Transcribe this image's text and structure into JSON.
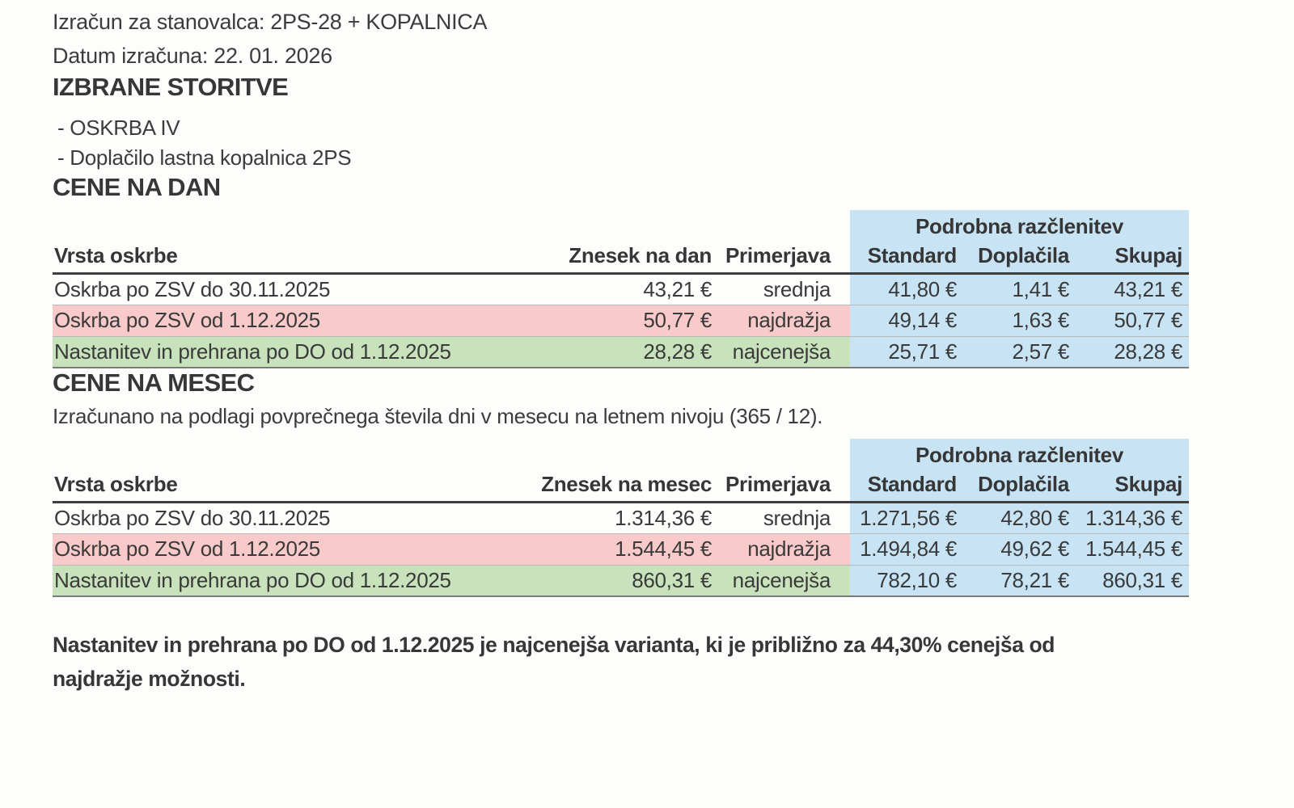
{
  "header": {
    "title_line": "Izračun za stanovalca: 2PS-28 + KOPALNICA",
    "date_line": "Datum izračuna: 22. 01. 2026"
  },
  "services": {
    "heading": "IZBRANE STORITVE",
    "items": [
      "- OSKRBA IV",
      "- Doplačilo lastna kopalnica 2PS"
    ]
  },
  "daily": {
    "heading": "CENE NA DAN",
    "table": {
      "group_header": "Podrobna razčlenitev",
      "columns": [
        "Vrsta oskrbe",
        "Znesek na dan",
        "Primerjava",
        "Standard",
        "Doplačila",
        "Skupaj"
      ],
      "rows": [
        {
          "vrsta": "Oskrba po ZSV do 30.11.2025",
          "znesek": "43,21 €",
          "primerjava": "srednja",
          "standard": "41,80 €",
          "doplacila": "1,41 €",
          "skupaj": "43,21 €",
          "highlight": "none"
        },
        {
          "vrsta": "Oskrba po ZSV od 1.12.2025",
          "znesek": "50,77 €",
          "primerjava": "najdražja",
          "standard": "49,14 €",
          "doplacila": "1,63 €",
          "skupaj": "50,77 €",
          "highlight": "most-expensive"
        },
        {
          "vrsta": "Nastanitev in prehrana po DO od 1.12.2025",
          "znesek": "28,28 €",
          "primerjava": "najcenejša",
          "standard": "25,71 €",
          "doplacila": "2,57 €",
          "skupaj": "28,28 €",
          "highlight": "cheapest"
        }
      ]
    }
  },
  "monthly": {
    "heading": "CENE NA MESEC",
    "subtitle": "Izračunano na podlagi povprečnega števila dni v mesecu na letnem nivoju (365 / 12).",
    "table": {
      "group_header": "Podrobna razčlenitev",
      "columns": [
        "Vrsta oskrbe",
        "Znesek na mesec",
        "Primerjava",
        "Standard",
        "Doplačila",
        "Skupaj"
      ],
      "rows": [
        {
          "vrsta": "Oskrba po ZSV do 30.11.2025",
          "znesek": "1.314,36 €",
          "primerjava": "srednja",
          "standard": "1.271,56 €",
          "doplacila": "42,80 €",
          "skupaj": "1.314,36 €",
          "highlight": "none"
        },
        {
          "vrsta": "Oskrba po ZSV od 1.12.2025",
          "znesek": "1.544,45 €",
          "primerjava": "najdražja",
          "standard": "1.494,84 €",
          "doplacila": "49,62 €",
          "skupaj": "1.544,45 €",
          "highlight": "most-expensive"
        },
        {
          "vrsta": "Nastanitev in prehrana po DO od 1.12.2025",
          "znesek": "860,31 €",
          "primerjava": "najcenejša",
          "standard": "782,10 €",
          "doplacila": "78,21 €",
          "skupaj": "860,31 €",
          "highlight": "cheapest"
        }
      ]
    }
  },
  "footer": {
    "text": "Nastanitev in prehrana po DO od 1.12.2025 je najcenejša varianta, ki je približno za 44,30% cenejša od najdražje možnosti."
  },
  "colors": {
    "breakdown_bg": "#c7e3f4",
    "most_expensive_row_bg": "#f8caca",
    "cheapest_row_bg": "#c8e2bc"
  }
}
